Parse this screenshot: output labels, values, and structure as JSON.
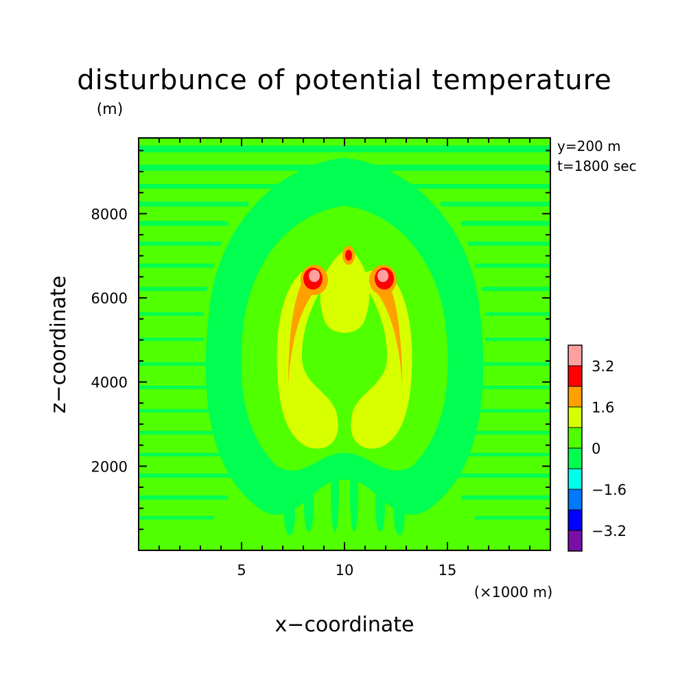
{
  "chart_data": {
    "type": "heatmap",
    "title": "disturbunce of potential temperature",
    "y_unit": "(m)",
    "x_unit": "(×1000 m)",
    "xlabel": "x−coordinate",
    "ylabel": "z−coordinate",
    "annotations": [
      "y=200 m",
      "t=1800 sec"
    ],
    "xlim": [
      0,
      20
    ],
    "ylim": [
      0,
      9800
    ],
    "x_ticks": [
      5,
      10,
      15
    ],
    "x_tick_labels": [
      "5",
      "10",
      "15"
    ],
    "y_ticks": [
      2000,
      4000,
      6000,
      8000
    ],
    "y_tick_labels": [
      "2000",
      "4000",
      "6000",
      "8000"
    ],
    "grid": false,
    "colorbar": {
      "levels": [
        -4.0,
        -3.2,
        -2.4,
        -1.6,
        -0.8,
        0,
        0.8,
        1.6,
        2.4,
        3.2,
        4.0
      ],
      "colors": [
        "#7a0fa8",
        "#0000ff",
        "#0078ff",
        "#00ffe8",
        "#00ff50",
        "#50ff00",
        "#d8ff00",
        "#ffa000",
        "#ff0000",
        "#ffa0a0"
      ],
      "labels": [
        "3.2",
        "1.6",
        "0",
        "−1.6",
        "−3.2"
      ],
      "label_values": [
        3.2,
        1.6,
        0,
        -1.6,
        -3.2
      ]
    },
    "features": [
      {
        "kind": "background",
        "value": 0.4
      },
      {
        "kind": "warm-arc-left",
        "x": 8.3,
        "z": 5000,
        "value": 1.2
      },
      {
        "kind": "warm-arc-right",
        "x": 11.7,
        "z": 5000,
        "value": 1.2
      },
      {
        "kind": "hotspot-left",
        "x": 8.6,
        "z": 6700,
        "value": 3.6
      },
      {
        "kind": "hotspot-right",
        "x": 11.9,
        "z": 6700,
        "value": 3.6
      },
      {
        "kind": "hotspot-center",
        "x": 10.2,
        "z": 7100,
        "value": 3.0
      }
    ]
  }
}
